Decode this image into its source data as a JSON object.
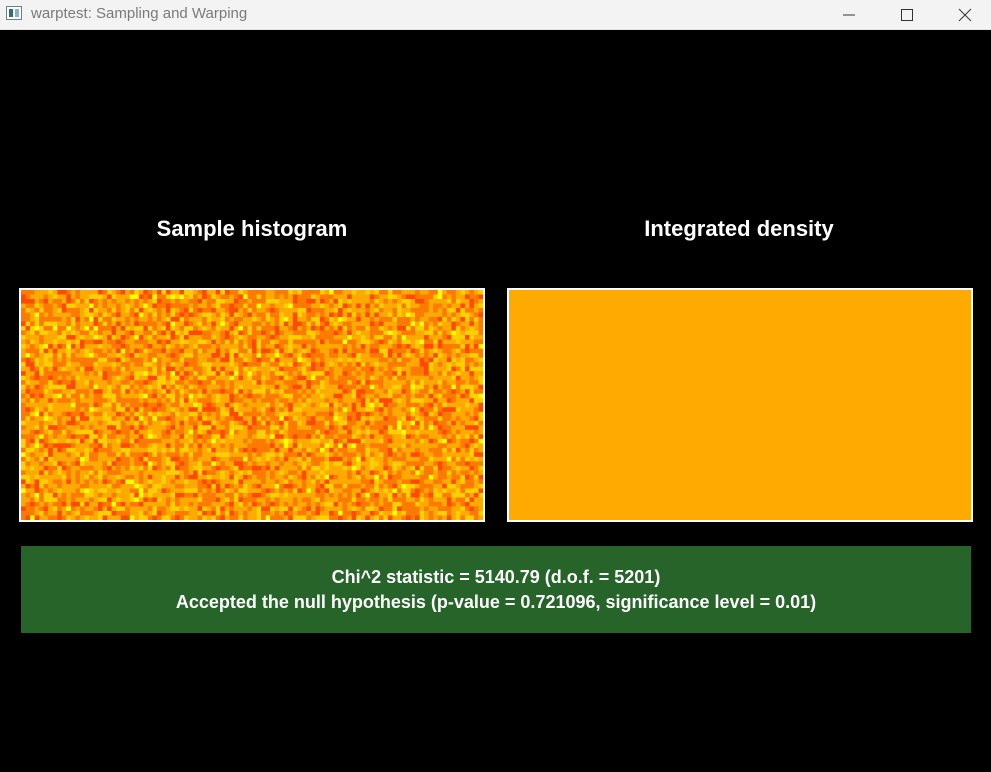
{
  "window": {
    "title": "warptest: Sampling and Warping",
    "app_icon": "warptest-app-icon",
    "controls": {
      "minimize_icon": "minimize-icon",
      "maximize_icon": "maximize-icon",
      "close_icon": "close-icon"
    }
  },
  "panels": {
    "histogram_title": "Sample histogram",
    "density_title": "Integrated density"
  },
  "colors": {
    "histogram_palette": [
      "#ffff00",
      "#ffd000",
      "#ffaa00",
      "#ff7a00",
      "#ff4a00"
    ],
    "density_fill": "#ffaa00",
    "result_background": "#26642a"
  },
  "result": {
    "chi2_line": "Chi^2 statistic = 5140.79 (d.o.f. = 5201)",
    "hypothesis_line": "Accepted the null hypothesis (p-value = 0.721096, significance level = 0.01)"
  }
}
